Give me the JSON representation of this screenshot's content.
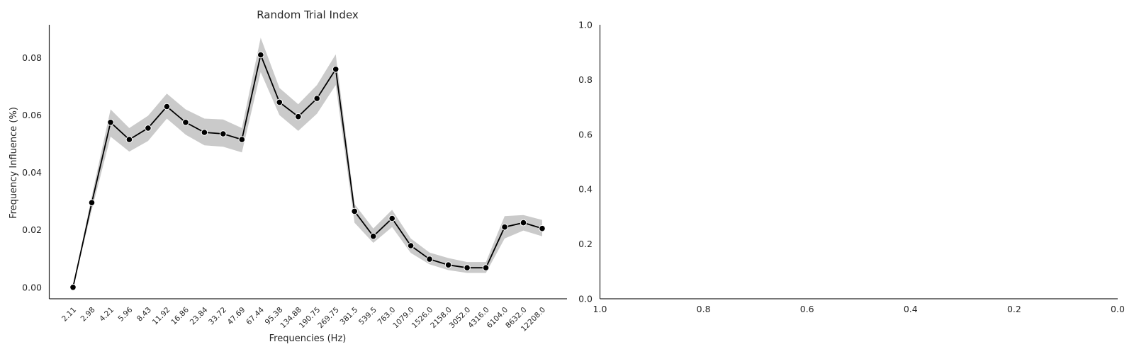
{
  "chart_data": [
    {
      "type": "line",
      "title": "Random Trial Index",
      "xlabel": "Frequencies (Hz)",
      "ylabel": "Frequency Influence (%)",
      "categories": [
        "2.11",
        "2.98",
        "4.21",
        "5.96",
        "8.43",
        "11.92",
        "16.86",
        "23.84",
        "33.72",
        "47.69",
        "67.44",
        "95.38",
        "134.88",
        "190.75",
        "269.75",
        "381.5",
        "539.5",
        "763.0",
        "1079.0",
        "1526.0",
        "2158.0",
        "3052.0",
        "4316.0",
        "6104.0",
        "8632.0",
        "12208.0"
      ],
      "series": [
        {
          "values": [
            0.0,
            0.0295,
            0.0575,
            0.0515,
            0.0555,
            0.063,
            0.0575,
            0.054,
            0.0535,
            0.0515,
            0.081,
            0.0645,
            0.0595,
            0.0658,
            0.076,
            0.0265,
            0.0178,
            0.024,
            0.0145,
            0.0098,
            0.0078,
            0.0068,
            0.0068,
            0.021,
            0.0225,
            0.0205
          ],
          "ci_lower": [
            0.0,
            0.027,
            0.0525,
            0.0473,
            0.051,
            0.0588,
            0.0532,
            0.0495,
            0.049,
            0.047,
            0.075,
            0.06,
            0.0545,
            0.0605,
            0.0705,
            0.0225,
            0.0155,
            0.021,
            0.012,
            0.008,
            0.006,
            0.005,
            0.005,
            0.017,
            0.0198,
            0.0178
          ],
          "ci_upper": [
            0.0,
            0.0318,
            0.062,
            0.0555,
            0.0598,
            0.0675,
            0.062,
            0.0588,
            0.0585,
            0.0555,
            0.087,
            0.0695,
            0.0638,
            0.0705,
            0.0812,
            0.029,
            0.0205,
            0.027,
            0.017,
            0.0121,
            0.0102,
            0.0088,
            0.0088,
            0.0248,
            0.0252,
            0.0235
          ],
          "color": "#000000",
          "band_color": "#bdbdbd",
          "marker": "circle"
        }
      ],
      "ylim": [
        -0.004,
        0.0915
      ],
      "yticks": [
        0.0,
        0.02,
        0.04,
        0.06,
        0.08
      ],
      "ytick_labels": [
        "0.00",
        "0.02",
        "0.04",
        "0.06",
        "0.08"
      ],
      "grid": false
    },
    {
      "type": "line",
      "title": "",
      "xlabel": "",
      "ylabel": "",
      "xlim": [
        1.0,
        0.0
      ],
      "ylim": [
        0.0,
        1.0
      ],
      "xticks": [
        1.0,
        0.8,
        0.6,
        0.4,
        0.2,
        0.0
      ],
      "xtick_labels": [
        "1.0",
        "0.8",
        "0.6",
        "0.4",
        "0.2",
        "0.0"
      ],
      "yticks": [
        0.0,
        0.2,
        0.4,
        0.6,
        0.8,
        1.0
      ],
      "ytick_labels": [
        "0.0",
        "0.2",
        "0.4",
        "0.6",
        "0.8",
        "1.0"
      ],
      "series": [],
      "grid": false
    }
  ]
}
